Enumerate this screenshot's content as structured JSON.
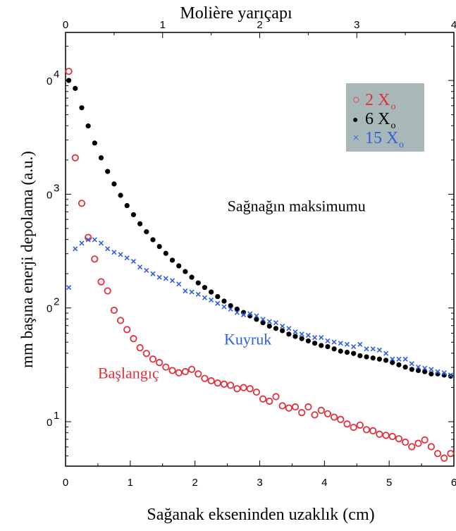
{
  "chart_data": {
    "type": "scatter",
    "title": "",
    "xlabel": "Sağanak ekseninden uzaklık (cm)",
    "ylabel": "mm başına enerji depolama (a.u.)",
    "top_axis_label": "Molière yarıçapı",
    "xlim": [
      0,
      6
    ],
    "top_xlim": [
      0,
      4
    ],
    "ylim_log": [
      0.5,
      1.6
    ],
    "yscale": "log",
    "x_ticks": [
      "0",
      "1",
      "2",
      "3",
      "4",
      "5",
      "6"
    ],
    "top_ticks": [
      "0",
      "1",
      "2",
      "3",
      "4"
    ],
    "y_ticks": [
      {
        "value": 1,
        "base": "0",
        "exp": "1"
      },
      {
        "value": 2,
        "base": "0",
        "exp": "2"
      },
      {
        "value": 3,
        "base": "0",
        "exp": "3"
      },
      {
        "value": 4,
        "base": "0",
        "exp": "4"
      }
    ],
    "legend": {
      "placement": "top-right",
      "background": "#a8b8b8",
      "entries": [
        {
          "symbol": "○",
          "label": "2 X",
          "sub": "o",
          "color": "#e0303c"
        },
        {
          "symbol": "●",
          "label": "6 X",
          "sub": "o",
          "color": "#000000"
        },
        {
          "symbol": "×",
          "label": "15 X",
          "sub": "o",
          "color": "#2f5fe0"
        }
      ]
    },
    "annotations": [
      {
        "text": "Sağnağın maksimumu",
        "color": "#000000",
        "x": 2.5,
        "y": 2.85
      },
      {
        "text": "Kuyruk",
        "color": "#2f5fe0",
        "x": 2.45,
        "y": 1.68
      },
      {
        "text": "Başlangıç",
        "color": "#e0303c",
        "x": 0.5,
        "y": 1.38
      }
    ],
    "series": [
      {
        "name": "2 X",
        "marker": "circle-open",
        "color": "#e0303c",
        "x": [
          0.05,
          0.15,
          0.25,
          0.35,
          0.45,
          0.55,
          0.65,
          0.75,
          0.85,
          0.95,
          1.05,
          1.15,
          1.25,
          1.35,
          1.45,
          1.55,
          1.65,
          1.75,
          1.85,
          1.95,
          2.05,
          2.15,
          2.25,
          2.35,
          2.45,
          2.55,
          2.65,
          2.75,
          2.85,
          2.95,
          3.05,
          3.15,
          3.25,
          3.35,
          3.45,
          3.55,
          3.65,
          3.75,
          3.85,
          3.95,
          4.05,
          4.15,
          4.25,
          4.35,
          4.45,
          4.55,
          4.65,
          4.75,
          4.85,
          4.95,
          5.05,
          5.15,
          5.25,
          5.35,
          5.45,
          5.55,
          5.65,
          5.75,
          5.85,
          5.95
        ],
        "y": [
          4.08,
          3.32,
          2.92,
          2.62,
          2.43,
          2.23,
          2.15,
          1.98,
          1.89,
          1.81,
          1.73,
          1.65,
          1.6,
          1.55,
          1.52,
          1.48,
          1.45,
          1.43,
          1.44,
          1.46,
          1.42,
          1.38,
          1.36,
          1.34,
          1.33,
          1.32,
          1.29,
          1.3,
          1.29,
          1.26,
          1.2,
          1.18,
          1.22,
          1.14,
          1.12,
          1.13,
          1.08,
          1.13,
          1.06,
          1.1,
          1.07,
          1.04,
          1.02,
          0.98,
          0.95,
          0.97,
          0.93,
          0.92,
          0.89,
          0.88,
          0.87,
          0.85,
          0.82,
          0.78,
          0.81,
          0.84,
          0.78,
          0.72,
          0.68,
          0.72
        ]
      },
      {
        "name": "6 X",
        "marker": "dot",
        "color": "#000000",
        "x": [
          0.05,
          0.15,
          0.25,
          0.35,
          0.45,
          0.55,
          0.65,
          0.75,
          0.85,
          0.95,
          1.05,
          1.15,
          1.25,
          1.35,
          1.45,
          1.55,
          1.65,
          1.75,
          1.85,
          1.95,
          2.05,
          2.15,
          2.25,
          2.35,
          2.45,
          2.55,
          2.65,
          2.75,
          2.85,
          2.95,
          3.05,
          3.15,
          3.25,
          3.35,
          3.45,
          3.55,
          3.65,
          3.75,
          3.85,
          3.95,
          4.05,
          4.15,
          4.25,
          4.35,
          4.45,
          4.55,
          4.65,
          4.75,
          4.85,
          4.95,
          5.05,
          5.15,
          5.25,
          5.35,
          5.45,
          5.55,
          5.65,
          5.75,
          5.85,
          5.95
        ],
        "y": [
          4.0,
          3.93,
          3.76,
          3.6,
          3.45,
          3.32,
          3.2,
          3.09,
          2.99,
          2.9,
          2.82,
          2.74,
          2.67,
          2.6,
          2.54,
          2.48,
          2.42,
          2.37,
          2.32,
          2.27,
          2.22,
          2.18,
          2.14,
          2.1,
          2.06,
          2.02,
          1.99,
          1.96,
          1.93,
          1.9,
          1.87,
          1.84,
          1.82,
          1.8,
          1.77,
          1.75,
          1.73,
          1.71,
          1.69,
          1.67,
          1.66,
          1.64,
          1.62,
          1.61,
          1.6,
          1.58,
          1.57,
          1.56,
          1.55,
          1.54,
          1.52,
          1.5,
          1.48,
          1.46,
          1.45,
          1.44,
          1.42,
          1.42,
          1.41,
          1.4
        ]
      },
      {
        "name": "15 X",
        "marker": "cross",
        "color": "#2f5fe0",
        "x": [
          0.05,
          0.15,
          0.25,
          0.35,
          0.45,
          0.55,
          0.65,
          0.75,
          0.85,
          0.95,
          1.05,
          1.15,
          1.25,
          1.35,
          1.45,
          1.55,
          1.65,
          1.75,
          1.85,
          1.95,
          2.05,
          2.15,
          2.25,
          2.35,
          2.45,
          2.55,
          2.65,
          2.75,
          2.85,
          2.95,
          3.05,
          3.15,
          3.25,
          3.35,
          3.45,
          3.55,
          3.65,
          3.75,
          3.85,
          3.95,
          4.05,
          4.15,
          4.25,
          4.35,
          4.45,
          4.55,
          4.65,
          4.75,
          4.85,
          4.95,
          5.05,
          5.15,
          5.25,
          5.35,
          5.45,
          5.55,
          5.65,
          5.75,
          5.85,
          5.95
        ],
        "y": [
          2.18,
          2.52,
          2.57,
          2.6,
          2.6,
          2.57,
          2.52,
          2.49,
          2.47,
          2.44,
          2.41,
          2.36,
          2.33,
          2.3,
          2.27,
          2.26,
          2.24,
          2.21,
          2.15,
          2.14,
          2.12,
          2.09,
          2.07,
          2.04,
          2.01,
          1.99,
          1.96,
          1.94,
          1.95,
          1.93,
          1.9,
          1.88,
          1.87,
          1.84,
          1.82,
          1.79,
          1.77,
          1.76,
          1.74,
          1.74,
          1.71,
          1.7,
          1.69,
          1.68,
          1.66,
          1.68,
          1.64,
          1.64,
          1.63,
          1.6,
          1.55,
          1.55,
          1.55,
          1.51,
          1.48,
          1.47,
          1.46,
          1.44,
          1.43,
          1.41
        ]
      }
    ]
  }
}
